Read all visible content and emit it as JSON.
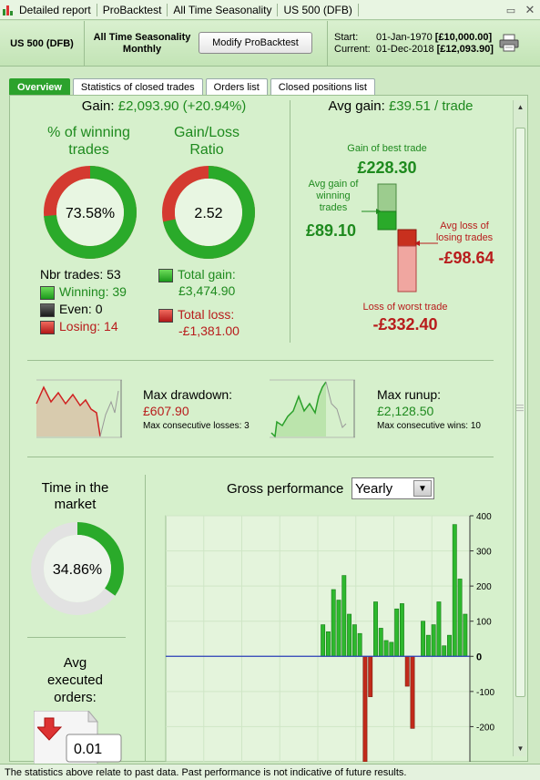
{
  "titlebar": {
    "crumbs": [
      "Detailed report",
      "ProBacktest",
      "All Time Seasonality",
      "US 500 (DFB)"
    ]
  },
  "header": {
    "instrument": "US 500 (DFB)",
    "strategy_line1": "All Time Seasonality",
    "strategy_line2": "Monthly",
    "modify_button": "Modify ProBacktest",
    "start_label": "Start:",
    "start_date": "01-Jan-1970",
    "start_value": "[£10,000.00]",
    "current_label": "Current:",
    "current_date": "01-Dec-2018",
    "current_value": "[£12,093.90]"
  },
  "tabs": [
    "Overview",
    "Statistics of closed trades",
    "Orders list",
    "Closed positions list"
  ],
  "overview": {
    "gain_label": "Gain:",
    "gain_value": "£2,093.90 (+20.94%)",
    "winning_title_1": "% of winning",
    "winning_title_2": "trades",
    "winning_pct": "73.58%",
    "winning_fraction": 0.7358,
    "ratio_title_1": "Gain/Loss",
    "ratio_title_2": "Ratio",
    "ratio_value": "2.52",
    "ratio_fraction": 0.716,
    "nbr_trades": "Nbr trades: 53",
    "winning": "Winning: 39",
    "even": "Even: 0",
    "losing": "Losing: 14",
    "total_gain_label": "Total gain:",
    "total_gain": "£3,474.90",
    "total_loss_label": "Total loss:",
    "total_loss": "-£1,381.00",
    "avg_gain_label": "Avg gain:",
    "avg_gain_value": "£39.51 / trade",
    "best_trade_label": "Gain of best trade",
    "best_trade": "£228.30",
    "avg_win_label_1": "Avg gain of",
    "avg_win_label_2": "winning",
    "avg_win_label_3": "trades",
    "avg_win": "£89.10",
    "avg_loss_label_1": "Avg loss of",
    "avg_loss_label_2": "losing trades",
    "avg_loss": "-£98.64",
    "worst_trade_label": "Loss of worst trade",
    "worst_trade": "-£332.40",
    "max_drawdown_label": "Max drawdown:",
    "max_drawdown": "£607.90",
    "max_consec_losses": "Max consecutive losses: 3",
    "max_runup_label": "Max runup:",
    "max_runup": "£2,128.50",
    "max_consec_wins": "Max consecutive wins: 10",
    "time_market_1": "Time in the",
    "time_market_2": "market",
    "time_market_pct": "34.86%",
    "time_market_fraction": 0.3486,
    "avg_orders_1": "Avg",
    "avg_orders_2": "executed",
    "avg_orders_3": "orders:",
    "avg_orders_value": "0.01",
    "gross_perf_label": "Gross performance",
    "gross_perf_period": "Yearly"
  },
  "colors": {
    "gain": "#1e8a1e",
    "loss": "#b81c1c",
    "bar_pos": "#2db82d",
    "bar_neg": "#c22a1a"
  },
  "chart_data": {
    "type": "bar",
    "title": "",
    "ylim": [
      -300,
      400
    ],
    "yticks": [
      400,
      300,
      200,
      100,
      0,
      -100,
      -200
    ],
    "values": [
      90,
      70,
      190,
      160,
      230,
      120,
      90,
      65,
      -300,
      -115,
      155,
      80,
      45,
      40,
      135,
      150,
      -85,
      -205,
      0,
      100,
      60,
      90,
      155,
      30,
      60,
      375,
      220,
      120
    ]
  },
  "status_text": "The statistics above relate to past data. Past performance is not indicative of future results."
}
